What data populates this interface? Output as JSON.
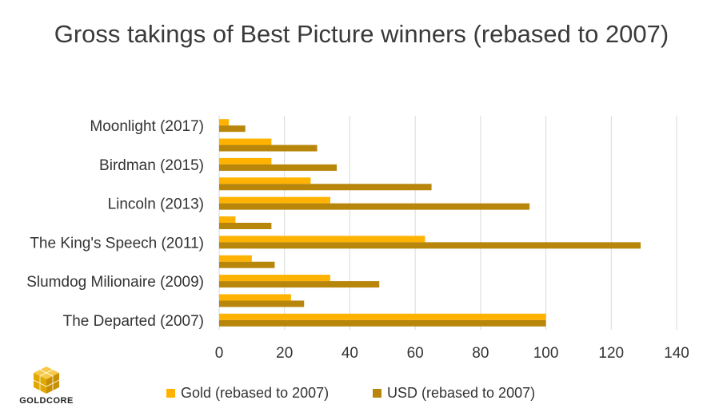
{
  "chart_data": {
    "type": "bar",
    "orientation": "horizontal",
    "title": "Gross takings of Best Picture winners (rebased to 2007)",
    "categories": [
      "The Departed (2007)",
      "",
      "Slumdog Milionaire (2009)",
      "",
      "The King's Speech (2011)",
      "",
      "Lincoln (2013)",
      "",
      "Birdman (2015)",
      "",
      "Moonlight (2017)"
    ],
    "series": [
      {
        "name": "Gold (rebased to 2007)",
        "color": "#FFB300",
        "values": [
          100,
          22,
          34,
          10,
          63,
          5,
          34,
          28,
          16,
          16,
          3
        ]
      },
      {
        "name": "USD (rebased to 2007)",
        "color": "#B8860B",
        "values": [
          100,
          26,
          49,
          17,
          129,
          16,
          95,
          65,
          36,
          30,
          8
        ]
      }
    ],
    "xlim": [
      0,
      140
    ],
    "xticks": [
      0,
      20,
      40,
      60,
      80,
      100,
      120,
      140
    ],
    "grid": true,
    "legend_position": "bottom"
  },
  "logo": {
    "text": "GOLDCORE",
    "icon": "gold-cube-icon"
  }
}
